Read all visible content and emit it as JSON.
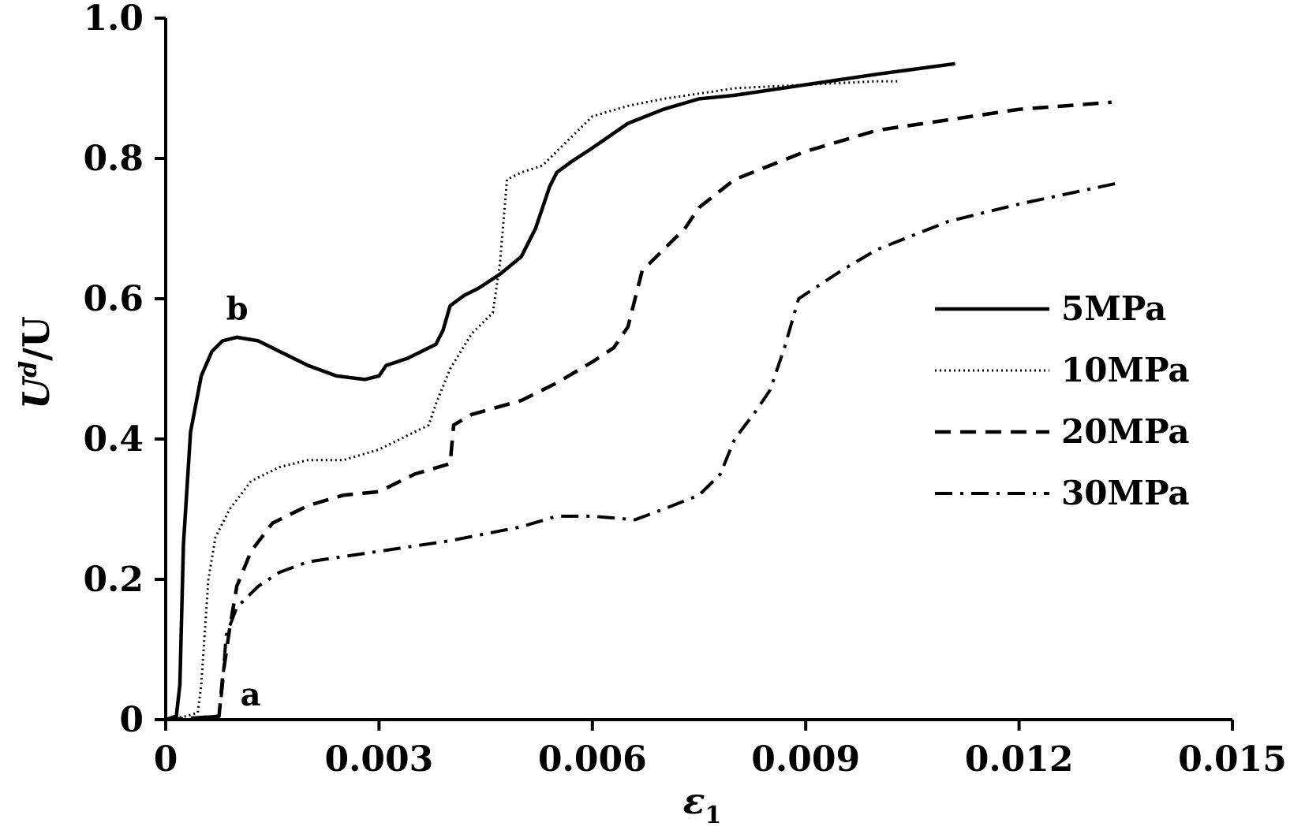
{
  "chart_data": {
    "type": "line",
    "xlabel": "ε",
    "xlabel_sub": "1",
    "ylabel": "U",
    "ylabel_sup": "d",
    "ylabel_rest": "/U",
    "xlim": [
      0,
      0.015
    ],
    "ylim": [
      0,
      1.0
    ],
    "x_ticks": [
      0,
      0.003,
      0.006,
      0.009,
      0.012,
      0.015
    ],
    "x_tick_labels": [
      "0",
      "0.003",
      "0.006",
      "0.009",
      "0.012",
      "0.015"
    ],
    "y_ticks": [
      0,
      0.2,
      0.4,
      0.6,
      0.8,
      1.0
    ],
    "y_tick_labels": [
      "0",
      "0.2",
      "0.4",
      "0.6",
      "0.8",
      "1.0"
    ],
    "grid": false,
    "legend_position": "right",
    "annotations": [
      {
        "text": "a",
        "x": 0.00105,
        "y": 0.02
      },
      {
        "text": "b",
        "x": 0.00085,
        "y": 0.57
      }
    ],
    "series": [
      {
        "name": "5MPa",
        "style": "solid",
        "points": [
          [
            0,
            0
          ],
          [
            0.00015,
            0.005
          ],
          [
            0.0002,
            0.05
          ],
          [
            0.00025,
            0.25
          ],
          [
            0.00035,
            0.41
          ],
          [
            0.0005,
            0.49
          ],
          [
            0.00065,
            0.525
          ],
          [
            0.0008,
            0.54
          ],
          [
            0.001,
            0.545
          ],
          [
            0.0013,
            0.54
          ],
          [
            0.0016,
            0.525
          ],
          [
            0.002,
            0.505
          ],
          [
            0.0024,
            0.49
          ],
          [
            0.0028,
            0.485
          ],
          [
            0.003,
            0.49
          ],
          [
            0.0031,
            0.505
          ],
          [
            0.0034,
            0.515
          ],
          [
            0.0038,
            0.535
          ],
          [
            0.0039,
            0.555
          ],
          [
            0.004,
            0.59
          ],
          [
            0.0042,
            0.605
          ],
          [
            0.0044,
            0.615
          ],
          [
            0.0047,
            0.635
          ],
          [
            0.005,
            0.66
          ],
          [
            0.0051,
            0.68
          ],
          [
            0.0052,
            0.7
          ],
          [
            0.0053,
            0.73
          ],
          [
            0.0054,
            0.76
          ],
          [
            0.0055,
            0.78
          ],
          [
            0.0057,
            0.795
          ],
          [
            0.006,
            0.815
          ],
          [
            0.0065,
            0.85
          ],
          [
            0.007,
            0.87
          ],
          [
            0.0075,
            0.885
          ],
          [
            0.008,
            0.89
          ],
          [
            0.009,
            0.905
          ],
          [
            0.01,
            0.92
          ],
          [
            0.0111,
            0.935
          ]
        ]
      },
      {
        "name": "10MPa",
        "style": "dotted",
        "points": [
          [
            0,
            0
          ],
          [
            0.0003,
            0.005
          ],
          [
            0.00045,
            0.01
          ],
          [
            0.0005,
            0.05
          ],
          [
            0.0006,
            0.2
          ],
          [
            0.0007,
            0.26
          ],
          [
            0.0009,
            0.3
          ],
          [
            0.0012,
            0.34
          ],
          [
            0.0016,
            0.36
          ],
          [
            0.002,
            0.37
          ],
          [
            0.0025,
            0.37
          ],
          [
            0.003,
            0.385
          ],
          [
            0.0034,
            0.405
          ],
          [
            0.0037,
            0.42
          ],
          [
            0.0038,
            0.45
          ],
          [
            0.004,
            0.5
          ],
          [
            0.0043,
            0.55
          ],
          [
            0.0046,
            0.58
          ],
          [
            0.0047,
            0.65
          ],
          [
            0.0048,
            0.77
          ],
          [
            0.005,
            0.78
          ],
          [
            0.0053,
            0.79
          ],
          [
            0.0056,
            0.82
          ],
          [
            0.006,
            0.86
          ],
          [
            0.0065,
            0.875
          ],
          [
            0.007,
            0.885
          ],
          [
            0.008,
            0.9
          ],
          [
            0.009,
            0.905
          ],
          [
            0.01,
            0.91
          ],
          [
            0.0103,
            0.91
          ]
        ]
      },
      {
        "name": "20MPa",
        "style": "dashed",
        "points": [
          [
            0,
            0
          ],
          [
            0.0005,
            0.003
          ],
          [
            0.00075,
            0.005
          ],
          [
            0.0008,
            0.06
          ],
          [
            0.0009,
            0.13
          ],
          [
            0.001,
            0.19
          ],
          [
            0.0012,
            0.24
          ],
          [
            0.0015,
            0.28
          ],
          [
            0.002,
            0.305
          ],
          [
            0.0025,
            0.32
          ],
          [
            0.003,
            0.325
          ],
          [
            0.0035,
            0.35
          ],
          [
            0.004,
            0.365
          ],
          [
            0.00405,
            0.42
          ],
          [
            0.0043,
            0.435
          ],
          [
            0.005,
            0.455
          ],
          [
            0.0055,
            0.48
          ],
          [
            0.006,
            0.51
          ],
          [
            0.0063,
            0.53
          ],
          [
            0.0065,
            0.56
          ],
          [
            0.0067,
            0.64
          ],
          [
            0.007,
            0.67
          ],
          [
            0.0073,
            0.7
          ],
          [
            0.0075,
            0.73
          ],
          [
            0.008,
            0.77
          ],
          [
            0.0085,
            0.79
          ],
          [
            0.009,
            0.81
          ],
          [
            0.01,
            0.84
          ],
          [
            0.011,
            0.855
          ],
          [
            0.012,
            0.87
          ],
          [
            0.0133,
            0.88
          ]
        ]
      },
      {
        "name": "30MPa",
        "style": "dashdot",
        "points": [
          [
            0,
            0
          ],
          [
            0.0005,
            0.003
          ],
          [
            0.00075,
            0.005
          ],
          [
            0.0008,
            0.05
          ],
          [
            0.00085,
            0.12
          ],
          [
            0.001,
            0.16
          ],
          [
            0.0013,
            0.19
          ],
          [
            0.0016,
            0.21
          ],
          [
            0.002,
            0.225
          ],
          [
            0.003,
            0.24
          ],
          [
            0.004,
            0.255
          ],
          [
            0.005,
            0.275
          ],
          [
            0.0055,
            0.29
          ],
          [
            0.006,
            0.29
          ],
          [
            0.0066,
            0.285
          ],
          [
            0.007,
            0.3
          ],
          [
            0.0075,
            0.32
          ],
          [
            0.0078,
            0.35
          ],
          [
            0.008,
            0.4
          ],
          [
            0.0083,
            0.44
          ],
          [
            0.0085,
            0.47
          ],
          [
            0.0087,
            0.53
          ],
          [
            0.0089,
            0.6
          ],
          [
            0.0092,
            0.62
          ],
          [
            0.0095,
            0.64
          ],
          [
            0.01,
            0.67
          ],
          [
            0.011,
            0.71
          ],
          [
            0.012,
            0.735
          ],
          [
            0.0134,
            0.765
          ]
        ]
      }
    ]
  }
}
